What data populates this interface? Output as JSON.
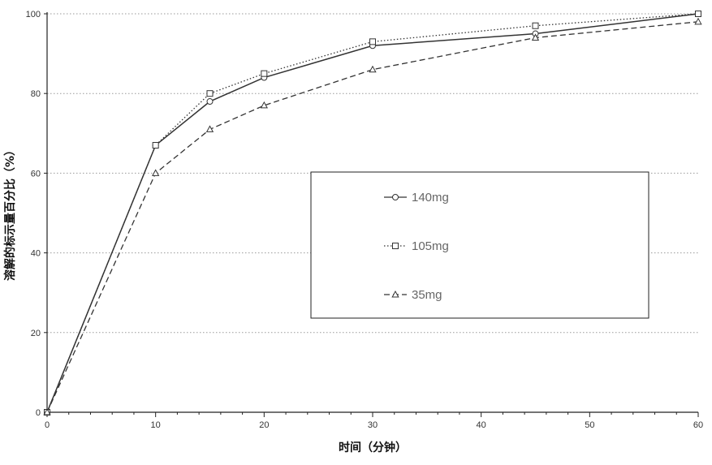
{
  "chart_data": {
    "type": "line",
    "title": "",
    "xlabel": "时间（分钟）",
    "ylabel": "溶解的标示量百分比（%）",
    "xlim": [
      0,
      60
    ],
    "ylim": [
      0,
      100
    ],
    "xticks": [
      0,
      10,
      20,
      30,
      40,
      50,
      60
    ],
    "yticks": [
      0,
      20,
      40,
      60,
      80,
      100
    ],
    "grid": {
      "horizontal": true,
      "vertical": false,
      "style": "dotted"
    },
    "legend_position": "center-right",
    "series": [
      {
        "name": "140mg",
        "marker": "circle",
        "line_style": "solid",
        "color": "#333333",
        "x": [
          0,
          10,
          15,
          20,
          30,
          45,
          60
        ],
        "y": [
          0,
          67,
          78,
          84,
          92,
          95,
          100
        ]
      },
      {
        "name": "105mg",
        "marker": "square",
        "line_style": "dotted",
        "color": "#333333",
        "x": [
          0,
          10,
          15,
          20,
          30,
          45,
          60
        ],
        "y": [
          0,
          67,
          80,
          85,
          93,
          97,
          100
        ]
      },
      {
        "name": "35mg",
        "marker": "triangle",
        "line_style": "dashed",
        "color": "#333333",
        "x": [
          0,
          10,
          15,
          20,
          30,
          45,
          60
        ],
        "y": [
          0,
          60,
          71,
          77,
          86,
          94,
          98
        ]
      }
    ]
  }
}
